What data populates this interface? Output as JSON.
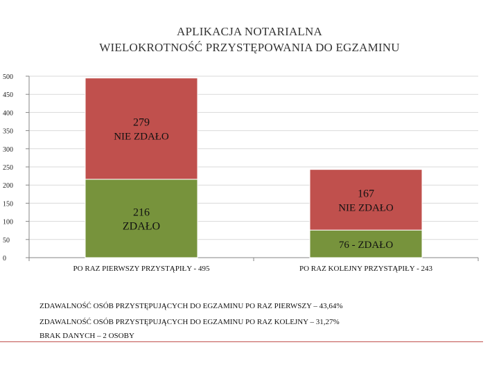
{
  "chart_data": {
    "type": "bar",
    "stacked": true,
    "title": [
      "APLIKACJA NOTARIALNA",
      "WIELOKROTNOŚĆ PRZYSTĘPOWANIA DO EGZAMINU"
    ],
    "categories": [
      "PO RAZ PIERWSZY PRZYSTĄPIŁY - 495",
      "PO RAZ KOLEJNY PRZYSTĄPIŁY - 243"
    ],
    "series": [
      {
        "values": [
          216,
          76
        ],
        "color": "#77933c",
        "labels": [
          [
            "216",
            "ZDAŁO"
          ],
          [
            "76 - ZDAŁO"
          ]
        ]
      },
      {
        "values": [
          279,
          167
        ],
        "color": "#c0504d",
        "labels": [
          [
            "279",
            "NIE ZDAŁO"
          ],
          [
            "167",
            "NIE ZDAŁO"
          ]
        ]
      }
    ],
    "ylim": [
      0,
      500
    ],
    "yticks": [
      0,
      50,
      100,
      150,
      200,
      250,
      300,
      350,
      400,
      450,
      500
    ],
    "grid": true,
    "legend": "none"
  },
  "notes": [
    "ZDAWALNOŚĆ OSÓB PRZYSTĘPUJĄCYCH DO EGZAMINU PO RAZ PIERWSZY – 43,64%",
    "ZDAWALNOŚĆ OSÓB PRZYSTĘPUJĄCYCH DO EGZAMINU PO RAZ KOLEJNY – 31,27%",
    "BRAK DANYCH – 2 OSOBY"
  ],
  "colors": {
    "accent_rule": "#c0504d",
    "gridline": "#d9d9d9",
    "axis": "#868686"
  }
}
